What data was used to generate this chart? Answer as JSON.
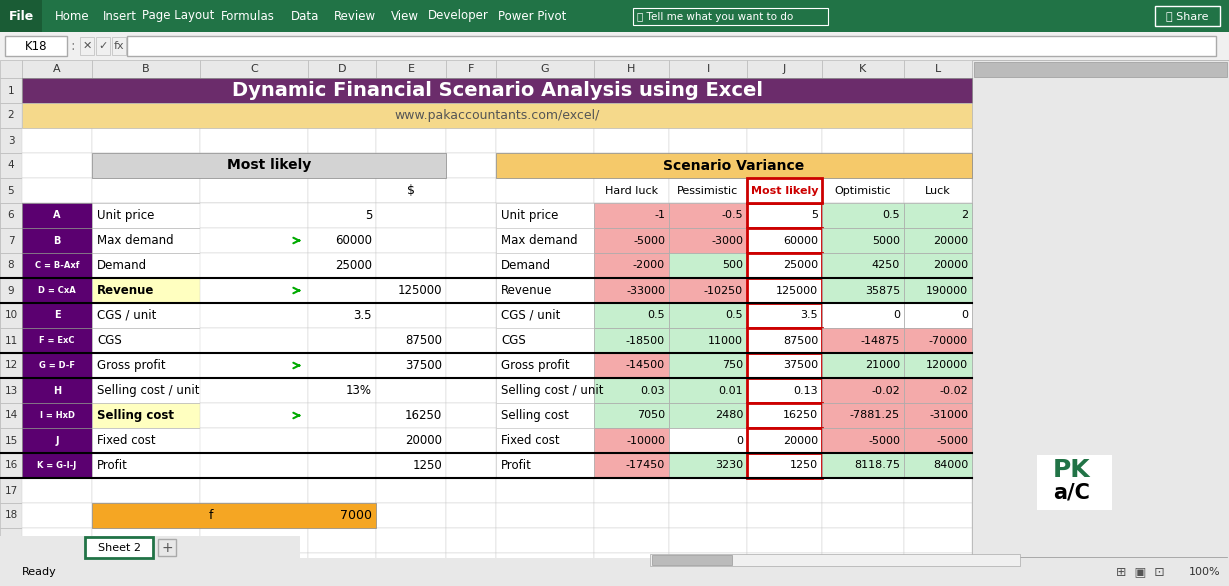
{
  "title": "Dynamic Financial Scenario Analysis using Excel",
  "subtitle": "www.pakaccountants.com/excel/",
  "title_bg": "#6B2C6B",
  "subtitle_bg": "#F5D98B",
  "title_color": "#FFFFFF",
  "subtitle_color": "#555555",
  "excel_menu_bg": "#217346",
  "formula_bar_cell": "K18",
  "most_likely_header_bg": "#D3D3D3",
  "scenario_header_bg": "#F5C96A",
  "left_label_bg": "#5B0070",
  "left_label_color": "#FFFFFF",
  "left_row_labels": [
    "A",
    "B",
    "C = B-Axf",
    "D = CxA",
    "E",
    "F = ExC",
    "G = D-F",
    "H",
    "I = HxD",
    "J",
    "K = G-I-J"
  ],
  "left_row_descriptions": [
    "Unit price",
    "Max demand",
    "Demand",
    "Revenue",
    "CGS / unit",
    "CGS",
    "Gross profit",
    "Selling cost / unit",
    "Selling cost",
    "Fixed cost",
    "Profit"
  ],
  "most_likely_values": [
    "5",
    "60000",
    "25000",
    "125000",
    "3.5",
    "87500",
    "37500",
    "13%",
    "16250",
    "20000",
    "1250"
  ],
  "ml_val_cols": [
    "D",
    "D",
    "D",
    "E",
    "D",
    "E",
    "E",
    "D",
    "E",
    "E",
    "E"
  ],
  "f_row_label": "f",
  "f_row_value": "7000",
  "f_row_bg": "#F5A623",
  "scenario_rows": [
    "Unit price",
    "Max demand",
    "Demand",
    "Revenue",
    "CGS / unit",
    "CGS",
    "Gross profit",
    "Selling cost / unit",
    "Selling cost",
    "Fixed cost",
    "Profit"
  ],
  "scenario_hard_luck": [
    "-1",
    "-5000",
    "-2000",
    "-33000",
    "0.5",
    "-18500",
    "-14500",
    "0.03",
    "7050",
    "-10000",
    "-17450"
  ],
  "scenario_pessimistic": [
    "-0.5",
    "-3000",
    "500",
    "-10250",
    "0.5",
    "11000",
    "750",
    "0.01",
    "2480",
    "0",
    "3230"
  ],
  "scenario_most_likely": [
    "5",
    "60000",
    "25000",
    "125000",
    "3.5",
    "87500",
    "37500",
    "0.13",
    "16250",
    "20000",
    "1250"
  ],
  "scenario_optimistic": [
    "0.5",
    "5000",
    "4250",
    "35875",
    "0",
    "-14875",
    "21000",
    "-0.02",
    "-7881.25",
    "-5000",
    "8118.75"
  ],
  "scenario_luck": [
    "2",
    "20000",
    "20000",
    "190000",
    "0",
    "-70000",
    "120000",
    "-0.02",
    "-31000",
    "-5000",
    "84000"
  ],
  "cell_colors_hard_luck": [
    "red",
    "red",
    "red",
    "red",
    "green",
    "green",
    "red",
    "green",
    "green",
    "red",
    "red"
  ],
  "cell_colors_pessimistic": [
    "red",
    "red",
    "green",
    "red",
    "green",
    "green",
    "green",
    "green",
    "green",
    "white",
    "green"
  ],
  "cell_colors_most_likely": [
    "white",
    "white",
    "white",
    "white",
    "white",
    "white",
    "white",
    "white",
    "white",
    "white",
    "white"
  ],
  "cell_colors_optimistic": [
    "green",
    "green",
    "green",
    "green",
    "white",
    "red",
    "green",
    "red",
    "red",
    "red",
    "green"
  ],
  "cell_colors_luck": [
    "green",
    "green",
    "green",
    "green",
    "white",
    "red",
    "green",
    "red",
    "red",
    "red",
    "green"
  ],
  "red_color": "#F4AAAA",
  "green_color": "#C6EFCE",
  "white_color": "#FFFFFF",
  "desc_bold_rows": [
    3,
    8
  ],
  "desc_yellow_rows": [
    3,
    8
  ]
}
